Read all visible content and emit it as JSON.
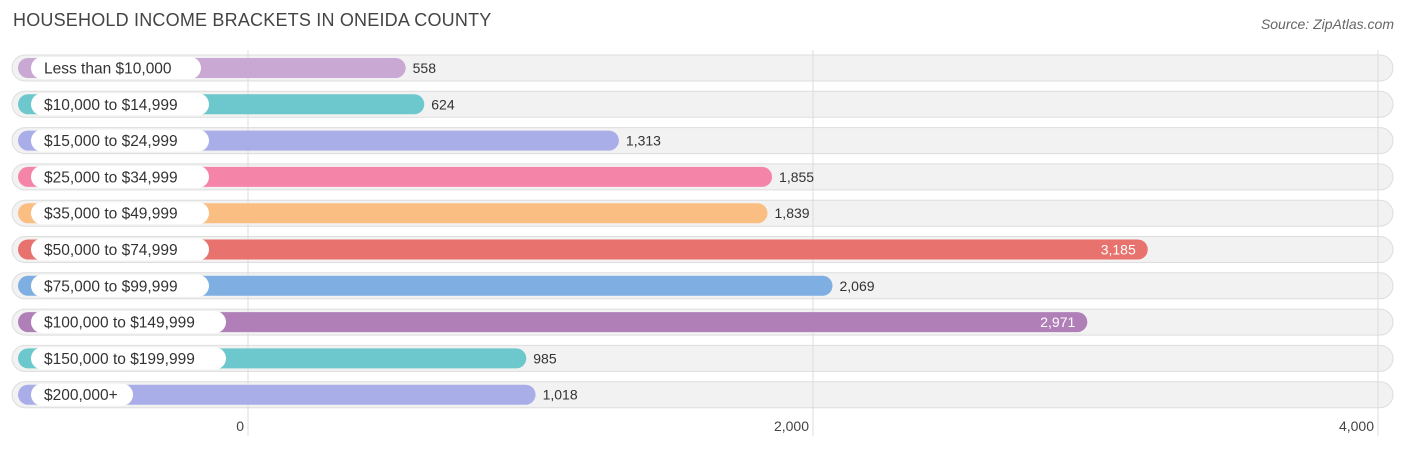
{
  "title": "HOUSEHOLD INCOME BRACKETS IN ONEIDA COUNTY",
  "source": "Source: ZipAtlas.com",
  "chart_data": {
    "type": "bar",
    "orientation": "horizontal",
    "title": "HOUSEHOLD INCOME BRACKETS IN ONEIDA COUNTY",
    "xlabel": "",
    "ylabel": "",
    "xlim": [
      0,
      4000
    ],
    "ticks": [
      0,
      2000,
      4000
    ],
    "tick_labels": [
      "0",
      "2,000",
      "4,000"
    ],
    "grid": true,
    "categories": [
      "Less than $10,000",
      "$10,000 to $14,999",
      "$15,000 to $24,999",
      "$25,000 to $34,999",
      "$35,000 to $49,999",
      "$50,000 to $74,999",
      "$75,000 to $99,999",
      "$100,000 to $149,999",
      "$150,000 to $199,999",
      "$200,000+"
    ],
    "values": [
      558,
      624,
      1313,
      1855,
      1839,
      3185,
      2069,
      2971,
      985,
      1018
    ],
    "value_labels": [
      "558",
      "624",
      "1,313",
      "1,855",
      "1,839",
      "3,185",
      "2,069",
      "2,971",
      "985",
      "1,018"
    ],
    "colors": [
      "#c9a8d4",
      "#6cc8cc",
      "#a9aee8",
      "#f585a8",
      "#fbbe82",
      "#e8736e",
      "#7eaee2",
      "#b07fb8",
      "#6cc8cc",
      "#a9aee8"
    ]
  }
}
